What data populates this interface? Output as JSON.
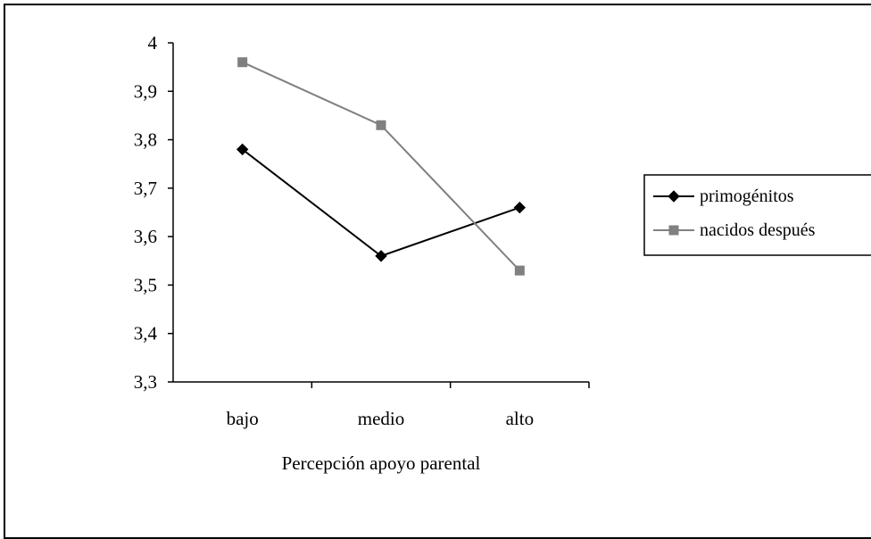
{
  "chart_data": {
    "type": "line",
    "categories": [
      "bajo",
      "medio",
      "alto"
    ],
    "series": [
      {
        "name": "primogénitos",
        "values": [
          3.78,
          3.56,
          3.66
        ],
        "color": "#000000",
        "marker": "diamond"
      },
      {
        "name": "nacidos después",
        "values": [
          3.96,
          3.83,
          3.53
        ],
        "color": "#808080",
        "marker": "square"
      }
    ],
    "title": "",
    "xlabel": "Percepción apoyo parental",
    "ylabel": "",
    "ylim": [
      3.3,
      4
    ],
    "yticks": [
      "3,3",
      "3,4",
      "3,5",
      "3,6",
      "3,7",
      "3,8",
      "3,9",
      "4"
    ],
    "grid": false,
    "legend_position": "right"
  }
}
